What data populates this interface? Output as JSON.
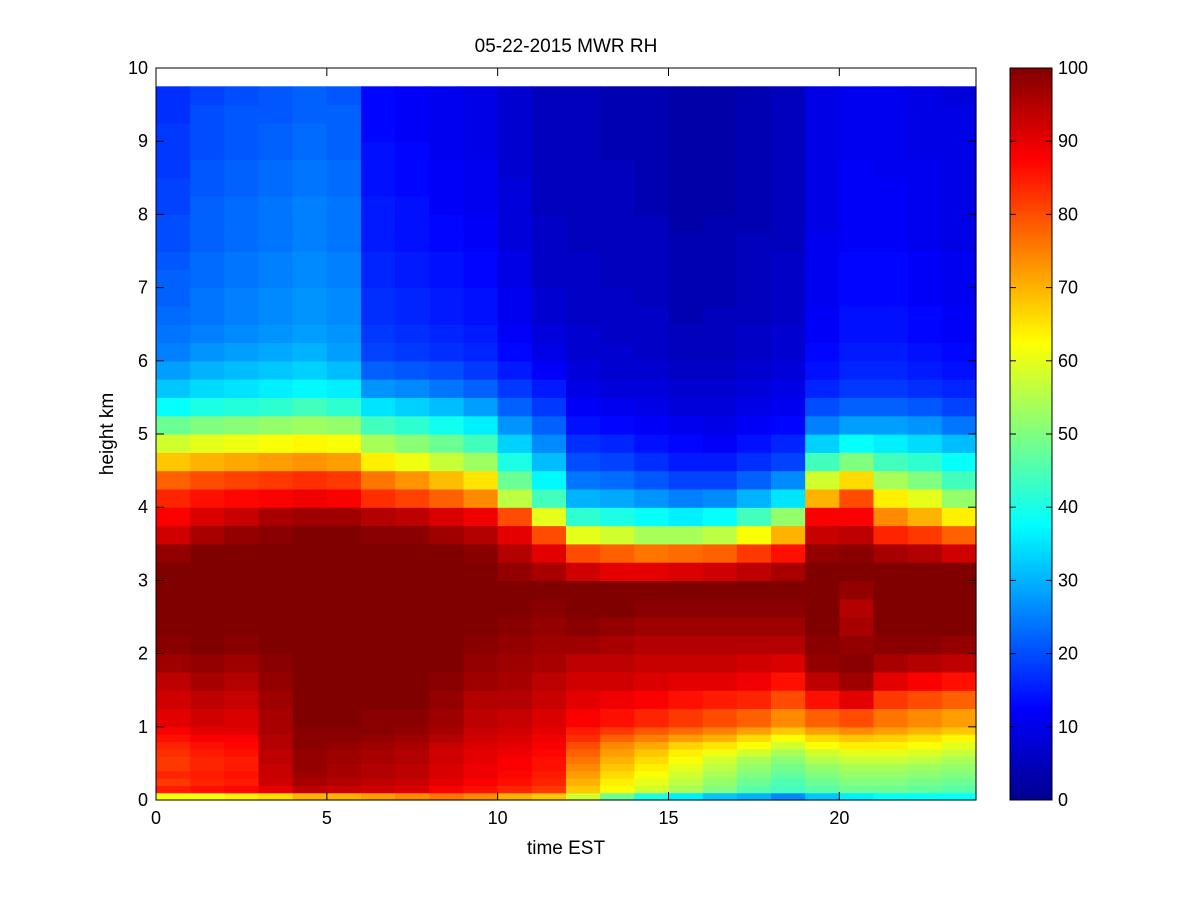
{
  "chart_data": {
    "type": "heatmap",
    "title": "05-22-2015 MWR RH",
    "xlabel": "time EST",
    "ylabel": "height km",
    "xlim": [
      0,
      24
    ],
    "ylim": [
      0,
      10
    ],
    "xticks": [
      0,
      5,
      10,
      15,
      20
    ],
    "yticks": [
      0,
      1,
      2,
      3,
      4,
      5,
      6,
      7,
      8,
      9,
      10
    ],
    "colorbar": {
      "range": [
        0,
        100
      ],
      "ticks": [
        0,
        10,
        20,
        30,
        40,
        50,
        60,
        70,
        80,
        90,
        100
      ],
      "colormap": "jet"
    },
    "time_hours": [
      0,
      1,
      2,
      3,
      4,
      5,
      6,
      7,
      8,
      9,
      10,
      11,
      12,
      13,
      14,
      15,
      16,
      17,
      18,
      19,
      20,
      21,
      22,
      23
    ],
    "height_levels_km": [
      0,
      0.1,
      0.2,
      0.3,
      0.4,
      0.5,
      0.6,
      0.7,
      0.8,
      0.9,
      1.0,
      1.25,
      1.5,
      1.75,
      2.0,
      2.25,
      2.5,
      2.75,
      3.0,
      3.25,
      3.5,
      3.75,
      4.0,
      4.25,
      4.5,
      4.75,
      5.0,
      5.25,
      5.5,
      5.75,
      6.0,
      6.25,
      6.5,
      6.75,
      7.0,
      7.25,
      7.5,
      7.75,
      8.0,
      8.25,
      8.5,
      8.75,
      9.0,
      9.25,
      9.5
    ],
    "height_top_km": 9.75,
    "rh_profiles_percent": [
      [
        62,
        85,
        82,
        84,
        82,
        82,
        83,
        84,
        86,
        88,
        90,
        92,
        94,
        97,
        99,
        100,
        100,
        100,
        100,
        98,
        92,
        88,
        84,
        78,
        68,
        58,
        48,
        38,
        32,
        28,
        25,
        24,
        23,
        22,
        22,
        21,
        20,
        20,
        19,
        19,
        18,
        18,
        18,
        17,
        17
      ],
      [
        62,
        86,
        84,
        85,
        84,
        84,
        85,
        86,
        88,
        90,
        92,
        94,
        96,
        98,
        100,
        100,
        100,
        100,
        100,
        100,
        96,
        91,
        86,
        80,
        70,
        60,
        50,
        40,
        34,
        30,
        27,
        25,
        24,
        24,
        23,
        23,
        22,
        22,
        22,
        21,
        21,
        20,
        20,
        20,
        19
      ],
      [
        64,
        87,
        85,
        86,
        85,
        85,
        86,
        87,
        88,
        90,
        91,
        93,
        95,
        97,
        99,
        100,
        100,
        100,
        100,
        100,
        98,
        93,
        87,
        81,
        71,
        61,
        51,
        41,
        35,
        31,
        28,
        26,
        25,
        25,
        24,
        24,
        23,
        23,
        23,
        22,
        22,
        21,
        21,
        21,
        20
      ],
      [
        66,
        90,
        92,
        93,
        93,
        94,
        94,
        95,
        95,
        96,
        96,
        97,
        98,
        99,
        100,
        100,
        100,
        100,
        100,
        100,
        99,
        96,
        88,
        82,
        72,
        62,
        52,
        42,
        36,
        32,
        29,
        27,
        26,
        26,
        25,
        25,
        24,
        24,
        24,
        23,
        23,
        22,
        22,
        21,
        21
      ],
      [
        70,
        94,
        96,
        97,
        98,
        98,
        98,
        99,
        99,
        99,
        100,
        100,
        100,
        100,
        100,
        100,
        100,
        100,
        100,
        100,
        100,
        97,
        89,
        83,
        73,
        63,
        53,
        44,
        37,
        33,
        30,
        28,
        27,
        27,
        26,
        26,
        25,
        25,
        25,
        24,
        24,
        23,
        23,
        22,
        22
      ],
      [
        70,
        93,
        95,
        96,
        96,
        97,
        97,
        98,
        99,
        99,
        100,
        100,
        100,
        100,
        100,
        100,
        100,
        100,
        100,
        100,
        100,
        97,
        88,
        82,
        72,
        62,
        52,
        42,
        36,
        31,
        28,
        27,
        26,
        26,
        25,
        25,
        24,
        24,
        24,
        23,
        23,
        22,
        22,
        22,
        21
      ],
      [
        72,
        92,
        94,
        95,
        95,
        96,
        96,
        97,
        98,
        99,
        99,
        100,
        100,
        100,
        100,
        100,
        100,
        100,
        100,
        100,
        99,
        95,
        83,
        76,
        64,
        54,
        44,
        35,
        27,
        22,
        19,
        18,
        17,
        17,
        16,
        16,
        15,
        15,
        15,
        14,
        14,
        14,
        13,
        13,
        13
      ],
      [
        74,
        91,
        93,
        94,
        94,
        95,
        95,
        96,
        97,
        98,
        99,
        100,
        100,
        100,
        100,
        100,
        100,
        100,
        100,
        100,
        99,
        94,
        81,
        73,
        61,
        51,
        42,
        33,
        26,
        21,
        18,
        17,
        16,
        16,
        15,
        15,
        14,
        14,
        14,
        13,
        13,
        13,
        12,
        12,
        12
      ],
      [
        76,
        88,
        90,
        91,
        91,
        92,
        92,
        93,
        95,
        96,
        97,
        98,
        99,
        100,
        100,
        100,
        100,
        100,
        100,
        100,
        97,
        91,
        78,
        69,
        57,
        48,
        39,
        31,
        24,
        20,
        17,
        16,
        15,
        15,
        14,
        14,
        13,
        13,
        12,
        12,
        12,
        11,
        11,
        11,
        11
      ],
      [
        74,
        86,
        88,
        89,
        89,
        90,
        90,
        91,
        92,
        93,
        94,
        95,
        97,
        98,
        99,
        100,
        100,
        100,
        100,
        99,
        95,
        89,
        74,
        65,
        53,
        44,
        36,
        28,
        22,
        18,
        16,
        15,
        14,
        14,
        13,
        13,
        12,
        12,
        11,
        11,
        11,
        10,
        10,
        10,
        10
      ],
      [
        70,
        84,
        86,
        87,
        88,
        88,
        89,
        90,
        91,
        92,
        93,
        95,
        96,
        97,
        98,
        99,
        100,
        100,
        98,
        95,
        90,
        80,
        56,
        48,
        40,
        33,
        27,
        22,
        18,
        15,
        13,
        12,
        11,
        11,
        10,
        10,
        9,
        9,
        9,
        9,
        8,
        8,
        8,
        8,
        8
      ],
      [
        68,
        82,
        84,
        85,
        86,
        86,
        87,
        88,
        89,
        90,
        91,
        93,
        94,
        96,
        97,
        98,
        99,
        100,
        96,
        90,
        80,
        60,
        44,
        37,
        31,
        26,
        22,
        18,
        15,
        12,
        10,
        9,
        8,
        8,
        7,
        7,
        7,
        7,
        6,
        6,
        6,
        6,
        6,
        6,
        6
      ],
      [
        58,
        68,
        70,
        72,
        74,
        76,
        78,
        80,
        83,
        85,
        88,
        90,
        92,
        94,
        97,
        99,
        100,
        100,
        92,
        80,
        60,
        42,
        30,
        24,
        20,
        17,
        14,
        12,
        10,
        9,
        8,
        8,
        7,
        7,
        7,
        7,
        6,
        6,
        6,
        6,
        6,
        6,
        6,
        6,
        6
      ],
      [
        48,
        62,
        64,
        66,
        68,
        70,
        72,
        74,
        78,
        82,
        86,
        89,
        92,
        94,
        96,
        98,
        100,
        100,
        90,
        78,
        58,
        40,
        29,
        23,
        19,
        16,
        13,
        11,
        9,
        8,
        8,
        7,
        7,
        7,
        6,
        6,
        6,
        6,
        6,
        6,
        6,
        5,
        5,
        5,
        5
      ],
      [
        40,
        58,
        60,
        62,
        64,
        66,
        68,
        71,
        75,
        79,
        84,
        88,
        91,
        93,
        95,
        97,
        99,
        100,
        90,
        76,
        54,
        38,
        27,
        21,
        17,
        14,
        12,
        10,
        9,
        8,
        7,
        7,
        7,
        6,
        6,
        6,
        6,
        6,
        5,
        5,
        5,
        5,
        5,
        5,
        5
      ],
      [
        36,
        54,
        56,
        58,
        60,
        62,
        64,
        67,
        72,
        77,
        82,
        86,
        90,
        93,
        95,
        97,
        99,
        100,
        91,
        77,
        54,
        36,
        25,
        19,
        15,
        13,
        11,
        9,
        8,
        7,
        6,
        6,
        5,
        5,
        5,
        5,
        5,
        4,
        4,
        4,
        4,
        4,
        4,
        4,
        4
      ],
      [
        32,
        50,
        52,
        54,
        56,
        58,
        61,
        65,
        70,
        75,
        80,
        85,
        90,
        93,
        95,
        97,
        99,
        100,
        92,
        78,
        56,
        38,
        26,
        19,
        15,
        12,
        10,
        9,
        8,
        7,
        6,
        6,
        6,
        5,
        5,
        5,
        5,
        5,
        4,
        4,
        4,
        4,
        4,
        4,
        4
      ],
      [
        30,
        46,
        48,
        50,
        52,
        54,
        58,
        62,
        66,
        72,
        78,
        84,
        89,
        92,
        95,
        97,
        99,
        100,
        94,
        82,
        62,
        44,
        30,
        22,
        17,
        14,
        12,
        10,
        9,
        8,
        7,
        7,
        6,
        6,
        6,
        6,
        6,
        5,
        5,
        5,
        5,
        5,
        5,
        5,
        5
      ],
      [
        26,
        44,
        45,
        47,
        49,
        51,
        54,
        58,
        62,
        68,
        74,
        80,
        86,
        91,
        95,
        97,
        99,
        100,
        96,
        86,
        70,
        52,
        35,
        26,
        19,
        16,
        13,
        11,
        10,
        9,
        8,
        8,
        7,
        7,
        7,
        7,
        6,
        6,
        6,
        6,
        6,
        6,
        6,
        6,
        6
      ],
      [
        32,
        46,
        48,
        50,
        52,
        55,
        58,
        62,
        66,
        72,
        78,
        86,
        94,
        98,
        99,
        100,
        100,
        100,
        100,
        98,
        93,
        88,
        70,
        58,
        44,
        33,
        25,
        20,
        16,
        14,
        13,
        12,
        12,
        11,
        11,
        11,
        11,
        10,
        10,
        10,
        10,
        10,
        10,
        10,
        10
      ],
      [
        36,
        48,
        50,
        52,
        54,
        57,
        60,
        64,
        68,
        74,
        80,
        90,
        97,
        99,
        98,
        96,
        95,
        98,
        100,
        99,
        94,
        88,
        80,
        66,
        50,
        38,
        28,
        22,
        18,
        16,
        15,
        14,
        14,
        13,
        13,
        13,
        12,
        12,
        12,
        12,
        12,
        11,
        11,
        11,
        11
      ],
      [
        38,
        48,
        50,
        52,
        54,
        57,
        60,
        64,
        67,
        72,
        76,
        82,
        90,
        96,
        99,
        100,
        100,
        100,
        100,
        96,
        84,
        74,
        64,
        54,
        44,
        36,
        28,
        22,
        18,
        16,
        15,
        14,
        14,
        13,
        13,
        13,
        12,
        12,
        12,
        12,
        11,
        11,
        11,
        11,
        11
      ],
      [
        38,
        47,
        49,
        51,
        53,
        56,
        59,
        62,
        65,
        70,
        74,
        80,
        88,
        95,
        99,
        100,
        100,
        100,
        100,
        95,
        82,
        70,
        60,
        50,
        42,
        34,
        27,
        21,
        17,
        15,
        14,
        13,
        13,
        12,
        12,
        12,
        11,
        11,
        11,
        11,
        11,
        10,
        10,
        10,
        10
      ],
      [
        38,
        46,
        48,
        50,
        52,
        54,
        57,
        60,
        63,
        68,
        72,
        78,
        86,
        94,
        98,
        100,
        100,
        100,
        100,
        92,
        78,
        64,
        52,
        44,
        38,
        31,
        24,
        19,
        16,
        14,
        13,
        12,
        12,
        11,
        11,
        11,
        10,
        10,
        10,
        10,
        10,
        10,
        10,
        10,
        9
      ]
    ]
  }
}
